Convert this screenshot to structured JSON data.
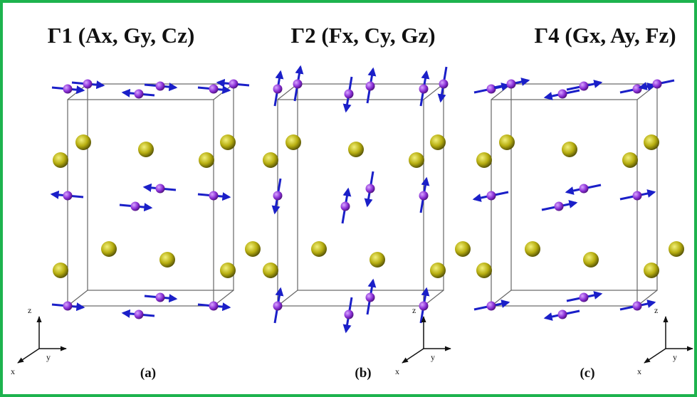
{
  "panels": [
    {
      "title": "Γ1 (Ax, Gy, Cz)",
      "label": "(a)",
      "axes": {
        "z": "z",
        "y": "y",
        "x": "x"
      }
    },
    {
      "title": "Γ2 (Fx, Cy, Gz)",
      "label": "(b)",
      "axes": {
        "z": "z",
        "y": "y",
        "x": "x"
      }
    },
    {
      "title": "Γ4 (Gx, Ay, Fz)",
      "label": "(c)",
      "axes": {
        "z": "z",
        "y": "y",
        "x": "x"
      }
    }
  ]
}
